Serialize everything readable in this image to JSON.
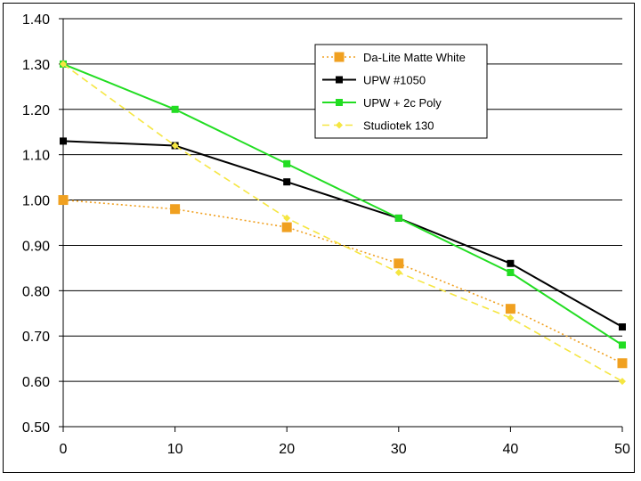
{
  "chart_data": {
    "type": "line",
    "title": "",
    "xlabel": "",
    "ylabel": "",
    "x": [
      0,
      10,
      20,
      30,
      40,
      50
    ],
    "x_tick_labels": [
      "0",
      "10",
      "20",
      "30",
      "40",
      "50"
    ],
    "y_tick_labels": [
      "0.50",
      "0.60",
      "0.70",
      "0.80",
      "0.90",
      "1.00",
      "1.10",
      "1.20",
      "1.30",
      "1.40"
    ],
    "xlim": [
      0,
      50
    ],
    "ylim": [
      0.5,
      1.4
    ],
    "grid": "horizontal",
    "legend_position": "top-right",
    "series": [
      {
        "name": "Da-Lite Matte White",
        "values": [
          1.0,
          0.98,
          0.94,
          0.86,
          0.76,
          0.64
        ],
        "color": "#f0a020",
        "line_style": "dotted",
        "marker": "square-large"
      },
      {
        "name": "UPW #1050",
        "values": [
          1.13,
          1.12,
          1.04,
          0.96,
          0.86,
          0.72
        ],
        "color": "#000000",
        "line_style": "solid",
        "marker": "square"
      },
      {
        "name": "UPW + 2c Poly",
        "values": [
          1.3,
          1.2,
          1.08,
          0.96,
          0.84,
          0.68
        ],
        "color": "#22dd22",
        "line_style": "solid",
        "marker": "square"
      },
      {
        "name": "Studiotek 130",
        "values": [
          1.3,
          1.12,
          0.96,
          0.84,
          0.74,
          0.6
        ],
        "color": "#f5e642",
        "line_style": "dashed",
        "marker": "diamond"
      }
    ]
  }
}
